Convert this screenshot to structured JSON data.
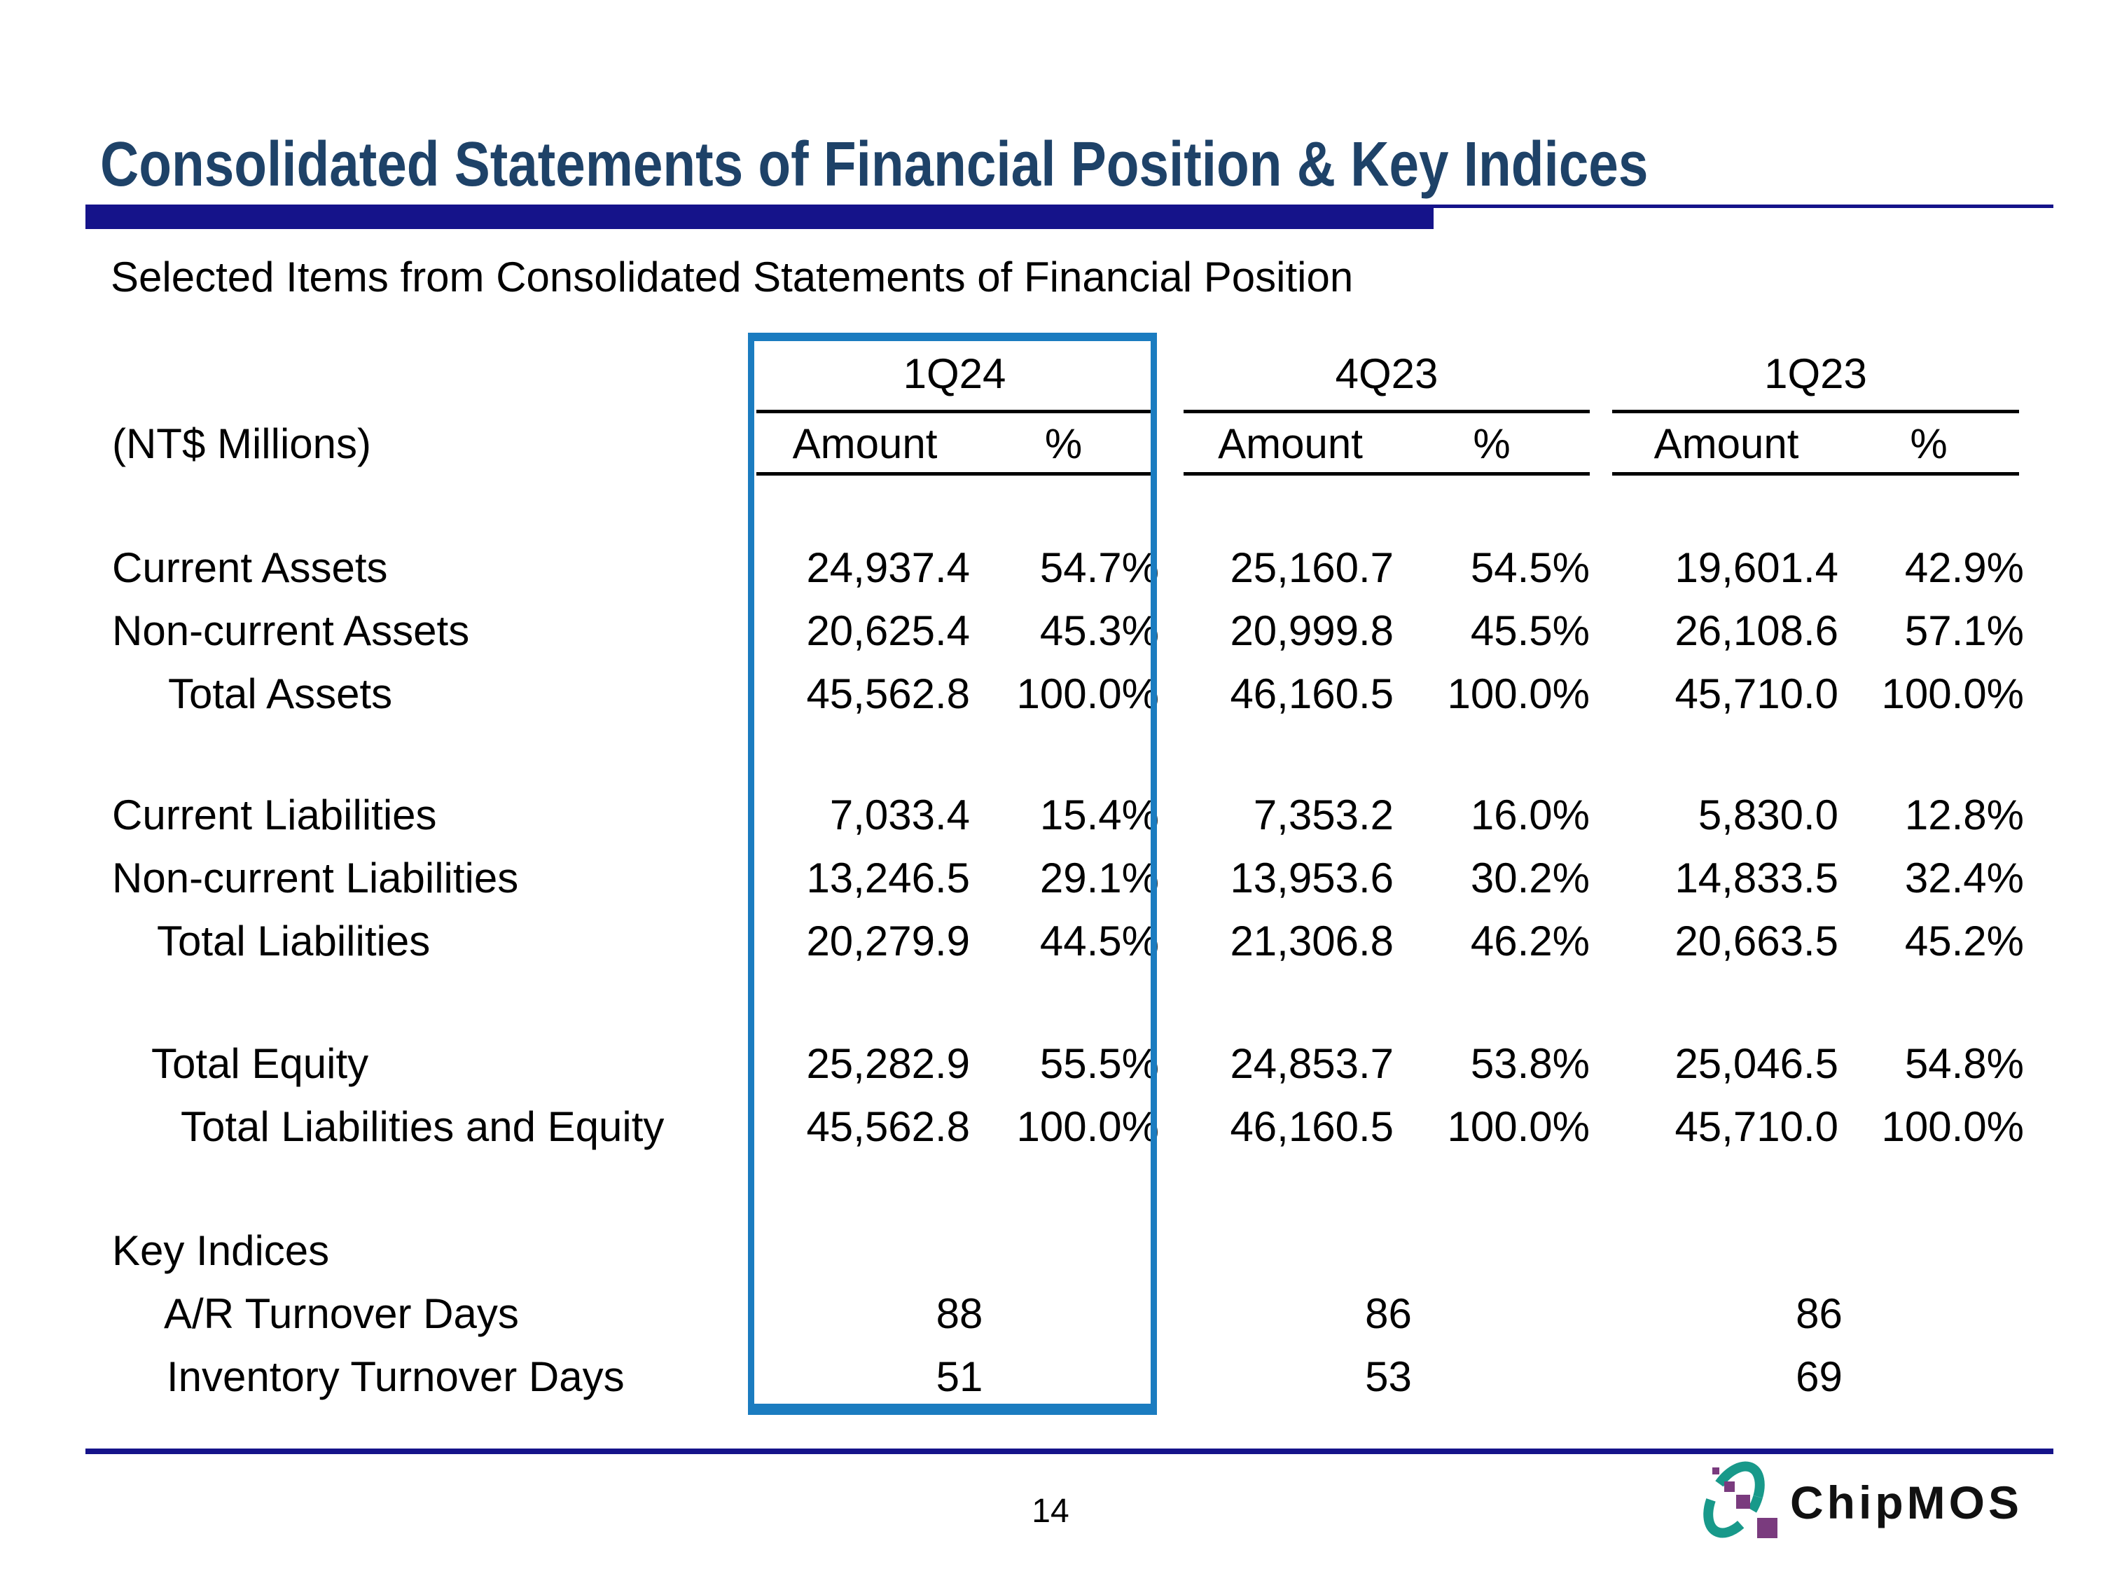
{
  "slide": {
    "title": "Consolidated Statements of Financial Position & Key Indices",
    "subtitle": "Selected Items from Consolidated Statements of Financial Position",
    "page_number": "14",
    "logo_text": "ChipMOS",
    "colors": {
      "title_blue": "#1e4268",
      "rule_navy": "#15138a",
      "highlight_box_blue": "#1b7cc0",
      "logo_teal": "#18998a",
      "logo_purple": "#7a3b7e"
    }
  },
  "table": {
    "type": "table",
    "unit_label": "(NT$ Millions)",
    "quarters": [
      "1Q24",
      "4Q23",
      "1Q23"
    ],
    "column_headers": {
      "amount": "Amount",
      "percent": "%"
    },
    "rows": [
      {
        "type": "data",
        "label": "Current Assets",
        "indent": 0,
        "cells": [
          "24,937.4",
          "54.7%",
          "25,160.7",
          "54.5%",
          "19,601.4",
          "42.9%"
        ]
      },
      {
        "type": "data",
        "label": "Non-current Assets",
        "indent": 0,
        "cells": [
          "20,625.4",
          "45.3%",
          "20,999.8",
          "45.5%",
          "26,108.6",
          "57.1%"
        ]
      },
      {
        "type": "data",
        "label": "Total Assets",
        "indent": 80,
        "cells": [
          "45,562.8",
          "100.0%",
          "46,160.5",
          "100.0%",
          "45,710.0",
          "100.0%"
        ]
      },
      {
        "type": "blank"
      },
      {
        "type": "data",
        "label": "Current Liabilities",
        "indent": 0,
        "cells": [
          "7,033.4",
          "15.4%",
          "7,353.2",
          "16.0%",
          "5,830.0",
          "12.8%"
        ]
      },
      {
        "type": "data",
        "label": "Non-current Liabilities",
        "indent": 0,
        "cells": [
          "13,246.5",
          "29.1%",
          "13,953.6",
          "30.2%",
          "14,833.5",
          "32.4%"
        ]
      },
      {
        "type": "data",
        "label": "Total Liabilities",
        "indent": 64,
        "cells": [
          "20,279.9",
          "44.5%",
          "21,306.8",
          "46.2%",
          "20,663.5",
          "45.2%"
        ]
      },
      {
        "type": "blank"
      },
      {
        "type": "data",
        "label": "Total Equity",
        "indent": 56,
        "cells": [
          "25,282.9",
          "55.5%",
          "24,853.7",
          "53.8%",
          "25,046.5",
          "54.8%"
        ]
      },
      {
        "type": "data",
        "label": "Total Liabilities and Equity",
        "indent": 98,
        "cells": [
          "45,562.8",
          "100.0%",
          "46,160.5",
          "100.0%",
          "45,710.0",
          "100.0%"
        ]
      },
      {
        "type": "blank"
      },
      {
        "type": "section",
        "label": "Key Indices",
        "indent": 0
      },
      {
        "type": "indices",
        "label": "A/R Turnover Days",
        "indent": 74,
        "cells": [
          "88",
          "86",
          "86"
        ]
      },
      {
        "type": "indices",
        "label": "Inventory Turnover Days",
        "indent": 78,
        "cells": [
          "51",
          "53",
          "69"
        ]
      }
    ]
  }
}
